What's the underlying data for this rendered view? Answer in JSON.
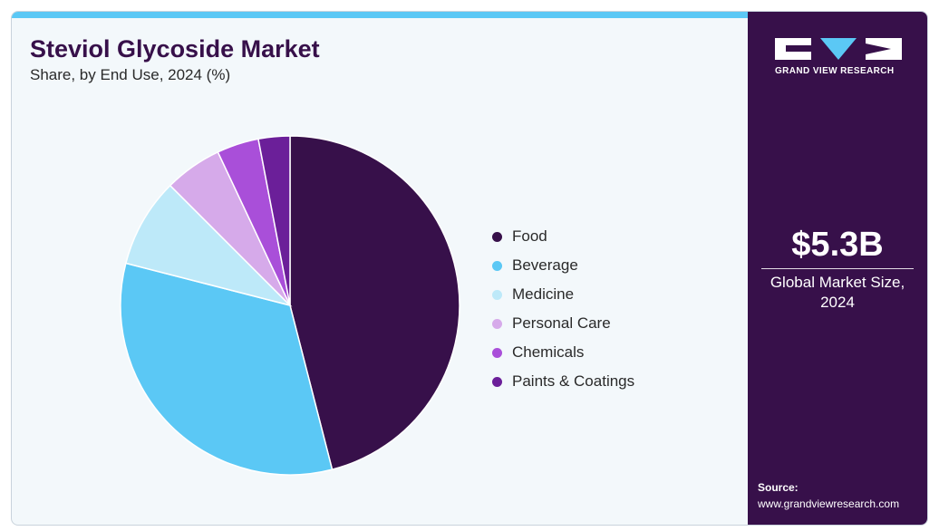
{
  "header": {
    "title": "Steviol Glycoside Market",
    "subtitle": "Share, by End Use, 2024 (%)"
  },
  "chart_data": {
    "type": "pie",
    "categories": [
      "Food",
      "Beverage",
      "Medicine",
      "Personal Care",
      "Chemicals",
      "Paints & Coatings"
    ],
    "values": [
      46.0,
      33.0,
      8.5,
      5.5,
      4.0,
      3.0
    ],
    "colors": [
      "#37104a",
      "#5bc8f5",
      "#bde9f9",
      "#d6aaea",
      "#a94fd9",
      "#6b1f99"
    ],
    "legend_position": "right"
  },
  "sidebar": {
    "brand": "GRAND VIEW RESEARCH",
    "market_size": "$5.3B",
    "market_label_line1": "Global Market Size,",
    "market_label_line2": "2024",
    "source_label": "Source:",
    "source_url": "www.grandviewresearch.com",
    "accent_color": "#5bc8f5",
    "background_color": "#37104a"
  }
}
